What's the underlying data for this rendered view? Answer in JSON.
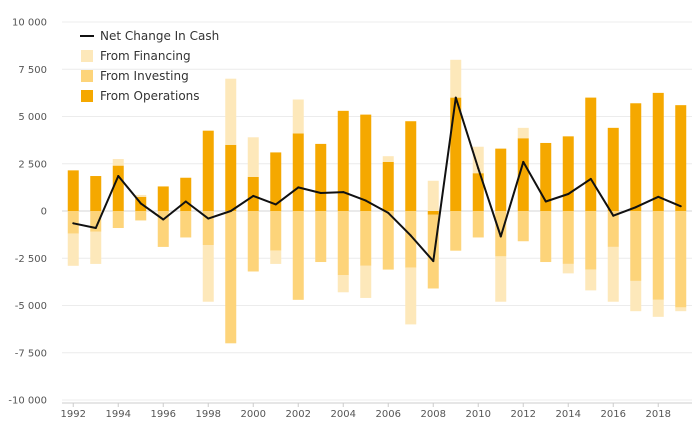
{
  "chart_data": {
    "type": "bar",
    "x": [
      1992,
      1993,
      1994,
      1995,
      1996,
      1997,
      1998,
      1999,
      2000,
      2001,
      2002,
      2003,
      2004,
      2005,
      2006,
      2007,
      2008,
      2009,
      2010,
      2011,
      2012,
      2013,
      2014,
      2015,
      2016,
      2017,
      2018,
      2019
    ],
    "ylim": [
      -10000,
      10000
    ],
    "yticks": [
      10000,
      7500,
      5000,
      2500,
      0,
      -2500,
      -5000,
      -7500,
      -10000
    ],
    "ytick_labels": [
      "10 000",
      "7 500",
      "5 000",
      "2 500",
      "0",
      "-2 500",
      "-5 000",
      "-7 500",
      "-10 000"
    ],
    "xticks": [
      1992,
      1994,
      1996,
      1998,
      2000,
      2002,
      2004,
      2006,
      2008,
      2010,
      2012,
      2014,
      2016,
      2018
    ],
    "grid": true,
    "legend_position": "top-left",
    "stacked": true,
    "series": [
      {
        "name": "From Operations",
        "kind": "bar",
        "color": "#f5a800",
        "values": [
          2150,
          1850,
          2400,
          750,
          1300,
          1750,
          4250,
          3500,
          1800,
          3100,
          4100,
          3550,
          5300,
          5100,
          2600,
          4750,
          -200,
          6000,
          2000,
          3300,
          3850,
          3600,
          3950,
          6000,
          4400,
          5700,
          6250,
          5600
        ]
      },
      {
        "name": "From Investing",
        "kind": "bar",
        "color": "#fdd47a",
        "values": [
          -1200,
          -1100,
          -900,
          -500,
          -1900,
          -1400,
          -1800,
          -7000,
          -3200,
          -2100,
          -4700,
          -2700,
          -3400,
          -2900,
          -3100,
          -3000,
          -3900,
          -2100,
          -1400,
          -2400,
          -1600,
          -2700,
          -2800,
          -3100,
          -1900,
          -3700,
          -4700,
          -5100
        ]
      },
      {
        "name": "From Financing",
        "kind": "bar",
        "color": "#fde8ba",
        "values": [
          -1700,
          -1700,
          350,
          100,
          0,
          50,
          -3000,
          3500,
          2100,
          -700,
          1800,
          0,
          -900,
          -1700,
          300,
          -3000,
          1600,
          2000,
          1400,
          -2400,
          550,
          0,
          -500,
          -1100,
          -2900,
          -1600,
          -900,
          -200
        ]
      },
      {
        "name": "Net Change In Cash",
        "kind": "line",
        "color": "#111111",
        "values": [
          -650,
          -900,
          1850,
          400,
          -450,
          500,
          -400,
          0,
          800,
          350,
          1250,
          950,
          1000,
          550,
          -100,
          -1300,
          -2650,
          6000,
          2250,
          -1350,
          2600,
          500,
          900,
          1700,
          -250,
          200,
          750,
          250
        ]
      }
    ]
  }
}
